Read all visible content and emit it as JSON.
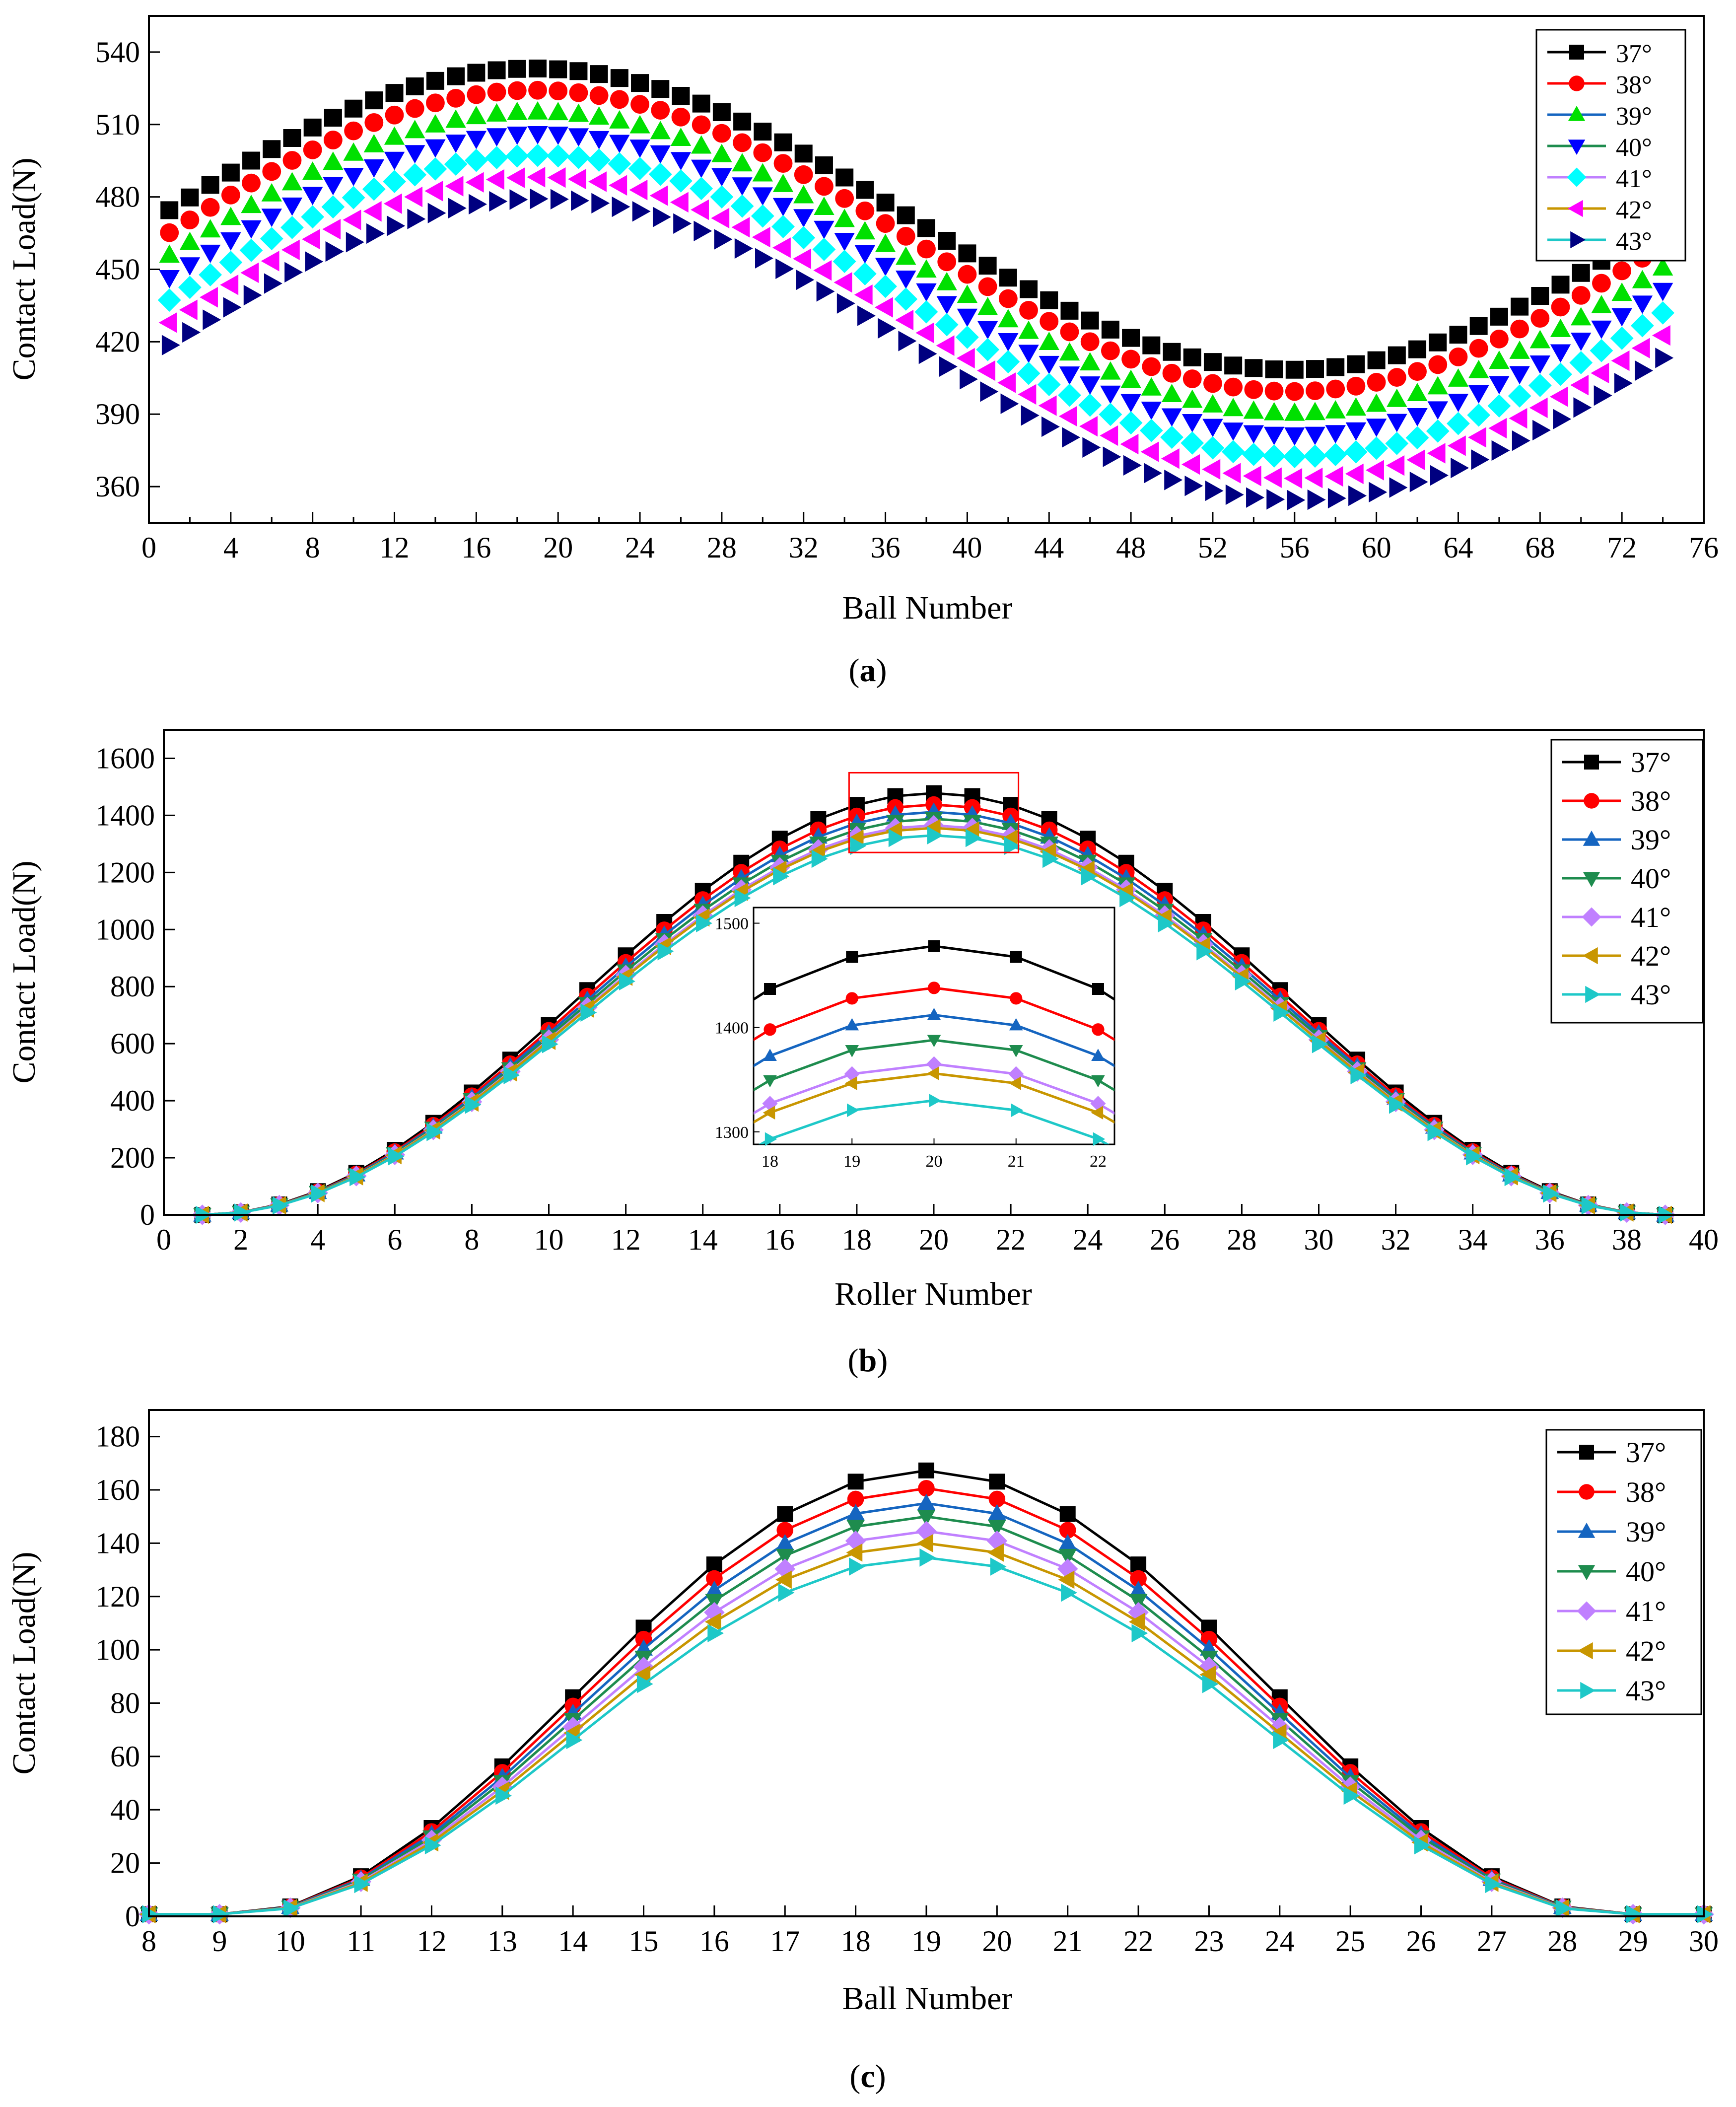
{
  "legend_labels": [
    "37°",
    "38°",
    "39°",
    "40°",
    "41°",
    "42°",
    "43°"
  ],
  "series_colors": [
    "#000000",
    "#ff0000",
    "#1565c0",
    "#1e8c4e",
    "#c080ff",
    "#c89600",
    "#1ec8c8"
  ],
  "marker_colors": [
    "#000000",
    "#ff0000",
    "#00e000",
    "#0000ff",
    "#00ffff",
    "#ff00ff",
    "#000080"
  ],
  "chart_data": [
    {
      "id": "a",
      "type": "line",
      "caption": "(a)",
      "xlabel": "Ball Number",
      "ylabel": "Contact Load(N)",
      "xlim": [
        0,
        76
      ],
      "ylim": [
        345,
        555
      ],
      "xticks": [
        0,
        4,
        8,
        12,
        16,
        20,
        24,
        28,
        32,
        36,
        40,
        44,
        48,
        52,
        56,
        60,
        64,
        68,
        72,
        76
      ],
      "yticks": [
        360,
        390,
        420,
        450,
        480,
        510,
        540
      ],
      "legend_position": "top-right",
      "lines_visible": false,
      "markers": [
        "square",
        "circle",
        "triangle-up",
        "triangle-down",
        "diamond",
        "triangle-left",
        "triangle-right"
      ],
      "model": {
        "n_points": 74,
        "offsets": [
          0,
          -9,
          -18,
          -27,
          -36,
          -45,
          -54
        ],
        "phase_shift_per_series": 0.06,
        "params": {
          "mean": 470.8,
          "amp": 62.4,
          "peak_x": 18.8,
          "period": 74
        }
      }
    },
    {
      "id": "b",
      "type": "line",
      "caption": "(b)",
      "xlabel": "Roller Number",
      "ylabel": "Contact Load(N)",
      "xlim": [
        0,
        40
      ],
      "ylim": [
        0,
        1700
      ],
      "xticks": [
        0,
        2,
        4,
        6,
        8,
        10,
        12,
        14,
        16,
        18,
        20,
        22,
        24,
        26,
        28,
        30,
        32,
        34,
        36,
        38,
        40
      ],
      "yticks": [
        0,
        200,
        400,
        600,
        800,
        1000,
        1200,
        1400,
        1600
      ],
      "legend_position": "top-right",
      "lines_visible": true,
      "markers": [
        "square",
        "circle",
        "triangle-up",
        "triangle-down",
        "diamond",
        "triangle-left",
        "triangle-right"
      ],
      "model": {
        "x_start": 1,
        "x_end": 39,
        "center": 20,
        "half_width": 19,
        "peaks": [
          1478,
          1438,
          1412,
          1388,
          1365,
          1356,
          1330
        ]
      },
      "inset": {
        "xlim": [
          17.8,
          22.2
        ],
        "ylim": [
          1288,
          1515
        ],
        "xticks": [
          18,
          19,
          20,
          21,
          22
        ],
        "yticks": [
          1300,
          1400,
          1500
        ],
        "zoom_box": {
          "x": [
            17.8,
            22.2
          ],
          "y": [
            1270,
            1480
          ]
        }
      }
    },
    {
      "id": "c",
      "type": "line",
      "caption": "(c)",
      "xlabel": "Ball Number",
      "ylabel": "Contact Load(N)",
      "xlim": [
        8,
        30
      ],
      "ylim": [
        0,
        190
      ],
      "xticks": [
        8,
        9,
        10,
        11,
        12,
        13,
        14,
        15,
        16,
        17,
        18,
        19,
        20,
        21,
        22,
        23,
        24,
        25,
        26,
        27,
        28,
        29,
        30
      ],
      "yticks": [
        0,
        20,
        40,
        60,
        80,
        100,
        120,
        140,
        160,
        180
      ],
      "legend_position": "top-right",
      "lines_visible": true,
      "markers": [
        "square",
        "circle",
        "triangle-up",
        "triangle-down",
        "diamond",
        "triangle-left",
        "triangle-right"
      ],
      "model": {
        "x_start": 8,
        "x_end": 30,
        "center": 19,
        "half_width": 10,
        "peaks": [
          167.3,
          160.6,
          155,
          150,
          144.5,
          140,
          134.6
        ]
      }
    }
  ]
}
